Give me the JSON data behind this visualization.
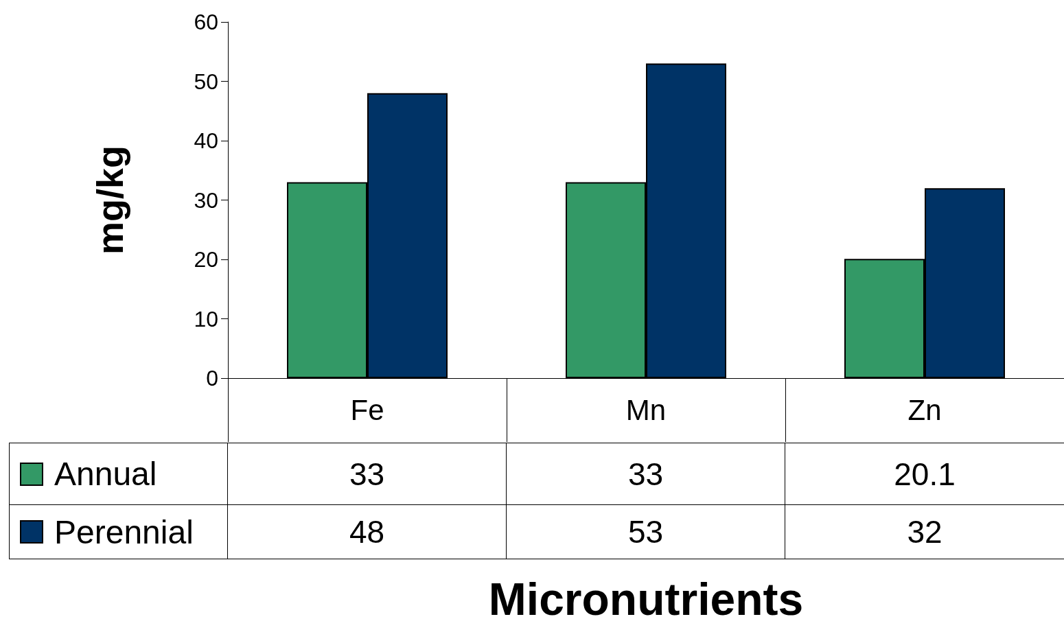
{
  "chart_data": {
    "type": "bar",
    "xlabel": "Micronutrients",
    "ylabel": "mg/kg",
    "categories": [
      "Fe",
      "Mn",
      "Zn"
    ],
    "series": [
      {
        "name": "Annual",
        "color": "#339966",
        "values": [
          33,
          33,
          20.1
        ]
      },
      {
        "name": "Perennial",
        "color": "#003366",
        "values": [
          48,
          53,
          32
        ]
      }
    ],
    "ylim": [
      0,
      60
    ],
    "yticks": [
      0,
      10,
      20,
      30,
      40,
      50,
      60
    ],
    "grid": false,
    "legend": "bottom left",
    "data_labels": true
  }
}
